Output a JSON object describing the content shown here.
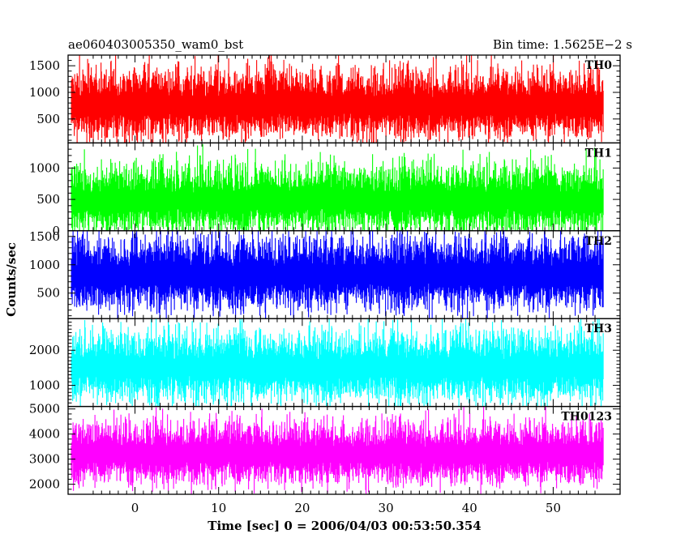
{
  "header": {
    "left_title": "ae060403005350_wam0_bst",
    "right_title": "Bin time: 1.5625E−2 s"
  },
  "chart_data": {
    "type": "line",
    "title": "ae060403005350_wam0_bst",
    "xlabel": "Time [sec] 0 = 2006/04/03 00:53:50.354",
    "ylabel": "Counts/sec",
    "xlim": [
      -8,
      58
    ],
    "x_data_range": [
      -7.6,
      56
    ],
    "x_ticks": [
      0,
      10,
      20,
      30,
      40,
      50
    ],
    "x_tick_labels": [
      "0",
      "10",
      "20",
      "30",
      "40",
      "50"
    ],
    "grid": false,
    "legend": "panel labels top-right",
    "panels": [
      {
        "name": "TH0",
        "color": "#ff0000",
        "ylim": [
          50,
          1700
        ],
        "y_ticks": [
          500,
          1000,
          1500
        ],
        "y_tick_labels": [
          "500",
          "1000",
          "1500"
        ],
        "mean": 760,
        "typical_min": 150,
        "typical_max": 1450,
        "peak": 1700
      },
      {
        "name": "TH1",
        "color": "#00ff00",
        "ylim": [
          0,
          1400
        ],
        "y_ticks": [
          0,
          500,
          1000
        ],
        "y_tick_labels": [
          "0",
          "500",
          "1000"
        ],
        "mean": 480,
        "typical_min": 60,
        "typical_max": 1150,
        "peak": 1380
      },
      {
        "name": "TH2",
        "color": "#0000ff",
        "ylim": [
          50,
          1600
        ],
        "y_ticks": [
          500,
          1000,
          1500
        ],
        "y_tick_labels": [
          "500",
          "1000",
          "1500"
        ],
        "mean": 820,
        "typical_min": 160,
        "typical_max": 1450,
        "peak": 1600
      },
      {
        "name": "TH3",
        "color": "#00ffff",
        "ylim": [
          400,
          2900
        ],
        "y_ticks": [
          1000,
          2000
        ],
        "y_tick_labels": [
          "1000",
          "2000"
        ],
        "mean": 1500,
        "typical_min": 600,
        "typical_max": 2600,
        "peak": 2900
      },
      {
        "name": "TH0123",
        "color": "#ff00ff",
        "ylim": [
          1600,
          5100
        ],
        "y_ticks": [
          2000,
          3000,
          4000,
          5000
        ],
        "y_tick_labels": [
          "2000",
          "3000",
          "4000",
          "5000"
        ],
        "mean": 3200,
        "typical_min": 2100,
        "typical_max": 4600,
        "peak": 5100
      }
    ]
  }
}
